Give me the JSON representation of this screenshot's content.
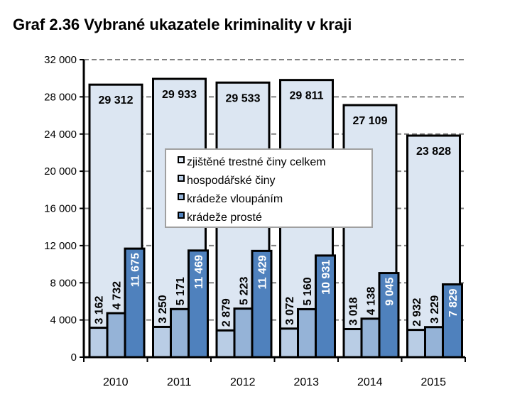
{
  "chart_data": {
    "type": "bar",
    "title": "Graf 2.36 Vybrané ukazatele kriminality v kraji",
    "categories": [
      "2010",
      "2011",
      "2012",
      "2013",
      "2014",
      "2015"
    ],
    "ylim": [
      0,
      32000
    ],
    "yticks": [
      0,
      4000,
      8000,
      12000,
      16000,
      20000,
      24000,
      28000,
      32000
    ],
    "ytick_labels": [
      "0",
      "4 000",
      "8 000",
      "12 000",
      "16 000",
      "20 000",
      "24 000",
      "28 000",
      "32 000"
    ],
    "grid": true,
    "legend_position": "center",
    "series": [
      {
        "name": "zjištěné trestné činy celkem",
        "color": "#dce6f2",
        "values": [
          29312,
          29933,
          29533,
          29811,
          27109,
          23828
        ],
        "labels": [
          "29 312",
          "29 933",
          "29 533",
          "29 811",
          "27 109",
          "23 828"
        ]
      },
      {
        "name": "hospodářské činy",
        "color": "#b9cde5",
        "values": [
          3162,
          3250,
          2879,
          3072,
          3018,
          2932
        ],
        "labels": [
          "3 162",
          "3 250",
          "2 879",
          "3 072",
          "3 018",
          "2 932"
        ]
      },
      {
        "name": "krádeže vloupáním",
        "color": "#95b3d7",
        "values": [
          4732,
          5171,
          5223,
          5160,
          4138,
          3229
        ],
        "labels": [
          "4 732",
          "5 171",
          "5 223",
          "5 160",
          "4 138",
          "3 229"
        ]
      },
      {
        "name": "krádeže prosté",
        "color": "#4f81bd",
        "values": [
          11675,
          11469,
          11429,
          10931,
          9045,
          7829
        ],
        "labels": [
          "11 675",
          "11 469",
          "11 429",
          "10 931",
          "9 045",
          "7 829"
        ]
      }
    ]
  }
}
